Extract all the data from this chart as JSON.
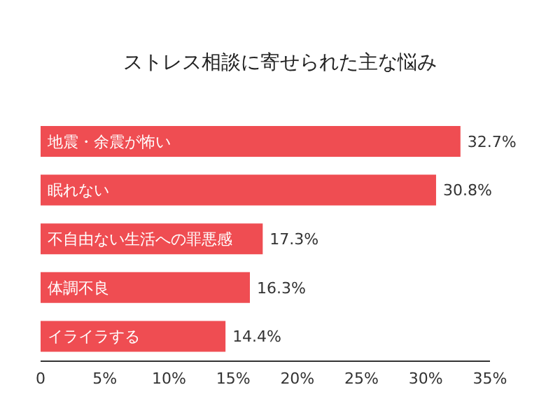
{
  "chart_data": {
    "type": "bar",
    "orientation": "horizontal",
    "title": "ストレス相談に寄せられた主な悩み",
    "categories": [
      "地震・余震が怖い",
      "眠れない",
      "不自由ない生活への罪悪感",
      "体調不良",
      "イライラする"
    ],
    "values": [
      32.7,
      30.8,
      17.3,
      16.3,
      14.4
    ],
    "value_labels": [
      "32.7%",
      "30.8%",
      "17.3%",
      "16.3%",
      "14.4%"
    ],
    "color": "#ef4d52",
    "xlim": [
      0,
      35
    ],
    "xticks": [
      0,
      {
        "value": 5,
        "label": "5%"
      },
      {
        "value": 10,
        "label": "10%"
      },
      {
        "value": 15,
        "label": "15%"
      },
      {
        "value": 20,
        "label": "20%"
      },
      {
        "value": 25,
        "label": "25%"
      },
      {
        "value": 30,
        "label": "30%"
      },
      {
        "value": 35,
        "label": "35%"
      }
    ],
    "grid": false,
    "legend": false
  }
}
